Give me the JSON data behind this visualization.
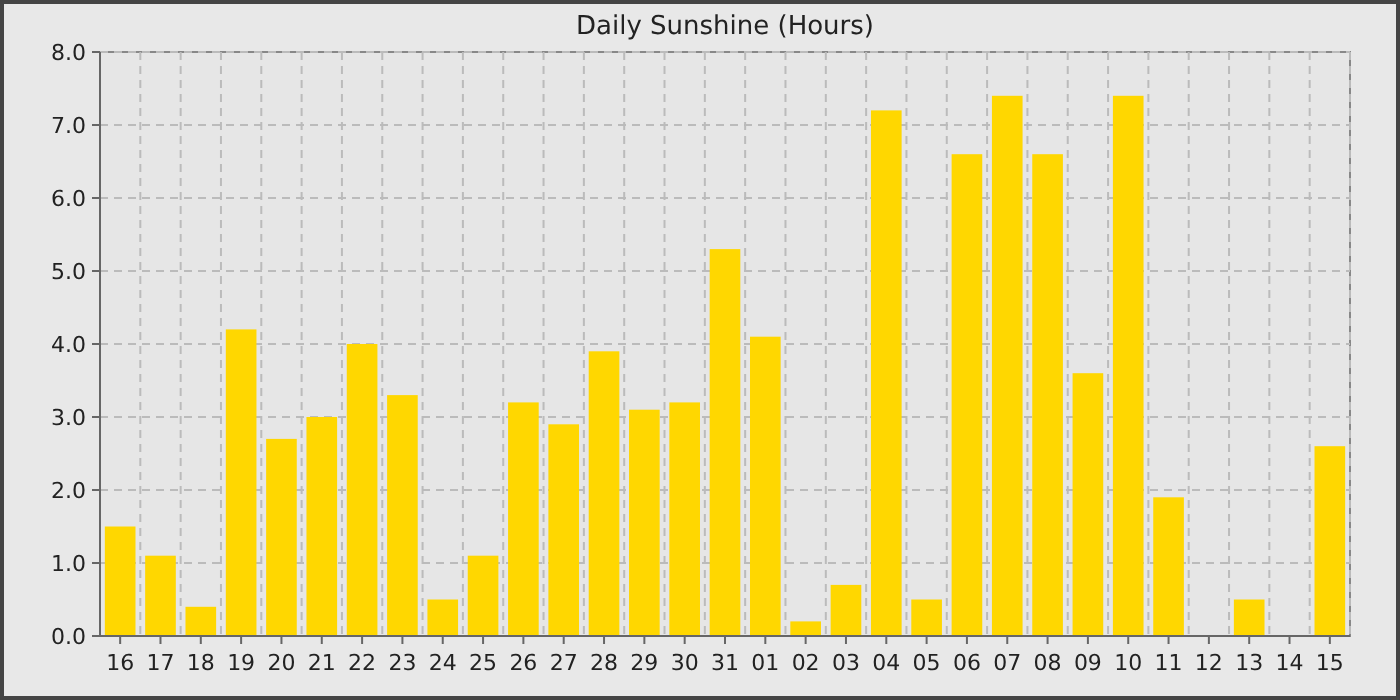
{
  "chart_data": {
    "type": "bar",
    "title": "Daily Sunshine (Hours)",
    "categories": [
      "16",
      "17",
      "18",
      "19",
      "20",
      "21",
      "22",
      "23",
      "24",
      "25",
      "26",
      "27",
      "28",
      "29",
      "30",
      "31",
      "01",
      "02",
      "03",
      "04",
      "05",
      "06",
      "07",
      "08",
      "09",
      "10",
      "11",
      "12",
      "13",
      "14",
      "15"
    ],
    "values": [
      1.5,
      1.1,
      0.4,
      4.2,
      2.7,
      3.0,
      4.0,
      3.3,
      0.5,
      1.1,
      3.2,
      2.9,
      3.9,
      3.1,
      3.2,
      5.3,
      4.1,
      0.2,
      0.7,
      7.2,
      0.5,
      6.6,
      7.4,
      6.6,
      3.6,
      7.4,
      1.9,
      0,
      0.5,
      0,
      2.6
    ],
    "color": "#ffd700",
    "ylim": [
      0,
      8
    ],
    "yticks": [
      {
        "value": 0,
        "label": "0.0"
      },
      {
        "value": 1,
        "label": "1.0"
      },
      {
        "value": 2,
        "label": "2.0"
      },
      {
        "value": 3,
        "label": "3.0"
      },
      {
        "value": 4,
        "label": "4.0"
      },
      {
        "value": 5,
        "label": "5.0"
      },
      {
        "value": 6,
        "label": "6.0"
      },
      {
        "value": 7,
        "label": "7.0"
      },
      {
        "value": 8,
        "label": "8.0"
      }
    ],
    "grid": true
  }
}
